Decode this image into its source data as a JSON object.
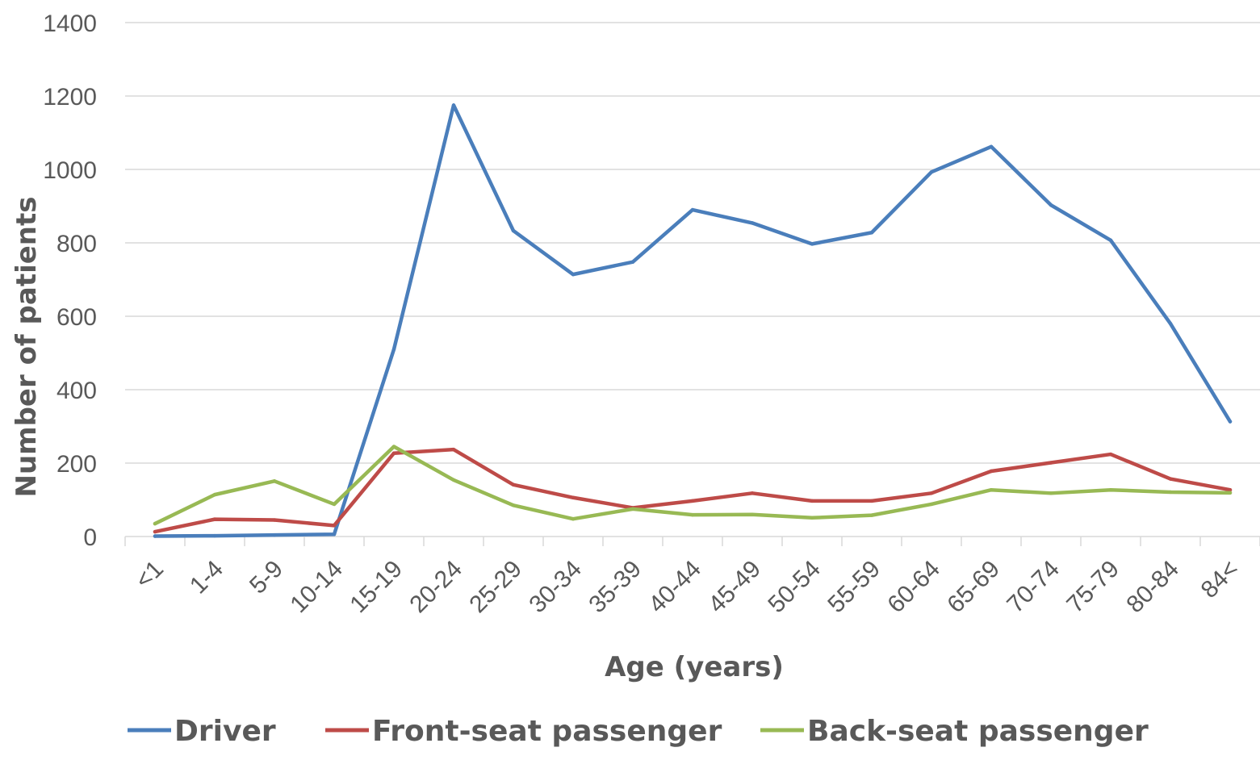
{
  "chart_data": {
    "type": "line",
    "xlabel": "Age (years)",
    "ylabel": "Number of patients",
    "ylim": [
      0,
      1400
    ],
    "yticks": [
      0,
      200,
      400,
      600,
      800,
      1000,
      1200,
      1400
    ],
    "grid": "horizontal",
    "legend_position": "bottom",
    "categories": [
      "<1",
      "1-4",
      "5-9",
      "10-14",
      "15-19",
      "20-24",
      "25-29",
      "30-34",
      "35-39",
      "40-44",
      "45-49",
      "50-54",
      "55-59",
      "60-64",
      "65-69",
      "70-74",
      "75-79",
      "80-84",
      "84<"
    ],
    "series": [
      {
        "name": "Driver",
        "color": "#4a7ebb",
        "values": [
          1,
          2,
          4,
          6,
          510,
          1175,
          833,
          714,
          748,
          890,
          854,
          797,
          828,
          993,
          1062,
          903,
          807,
          580,
          313
        ]
      },
      {
        "name": "Front-seat passenger",
        "color": "#be4b48",
        "values": [
          13,
          47,
          45,
          30,
          227,
          237,
          141,
          106,
          78,
          97,
          118,
          97,
          97,
          118,
          178,
          201,
          224,
          157,
          127
        ]
      },
      {
        "name": "Back-seat passenger",
        "color": "#98b954",
        "values": [
          35,
          114,
          151,
          88,
          245,
          154,
          85,
          48,
          75,
          59,
          60,
          51,
          58,
          88,
          127,
          118,
          127,
          121,
          119
        ]
      }
    ]
  }
}
